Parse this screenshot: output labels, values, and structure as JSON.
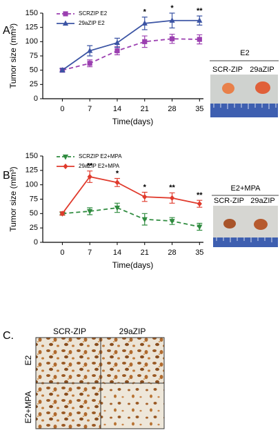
{
  "panel_labels": [
    "A.",
    "B.",
    "C."
  ],
  "chart_data": [
    {
      "type": "line",
      "x_label": "Time(days)",
      "y_label": "Tumor size (mm³)",
      "x": [
        0,
        7,
        14,
        21,
        28,
        35
      ],
      "xlim": [
        -5,
        36
      ],
      "xticks": [
        0,
        7,
        14,
        21,
        28,
        35
      ],
      "ylim": [
        0,
        150
      ],
      "yticks": [
        0,
        25,
        50,
        75,
        100,
        125,
        150
      ],
      "legend": "upper left",
      "series": [
        {
          "name": "SCRZIP E2",
          "color": "#9b3fb0",
          "linestyle": "dashed",
          "marker": "square",
          "values": [
            50,
            62,
            84,
            100,
            105,
            104
          ],
          "errors": [
            3,
            6,
            7,
            10,
            8,
            8
          ]
        },
        {
          "name": "29aZIP E2",
          "color": "#3b54a4",
          "linestyle": "solid",
          "marker": "triangle-up",
          "values": [
            50,
            84,
            98,
            132,
            137,
            137
          ],
          "errors": [
            3,
            9,
            8,
            11,
            13,
            8
          ]
        }
      ],
      "annotations": [
        {
          "x": 21,
          "text": "*"
        },
        {
          "x": 28,
          "text": "*"
        },
        {
          "x": 35,
          "text": "**"
        }
      ]
    },
    {
      "type": "line",
      "x_label": "Time(days)",
      "y_label": "Tumor size (mm³)",
      "x": [
        0,
        7,
        14,
        21,
        28,
        35
      ],
      "xlim": [
        -5,
        36
      ],
      "xticks": [
        0,
        7,
        14,
        21,
        28,
        35
      ],
      "ylim": [
        0,
        150
      ],
      "yticks": [
        0,
        25,
        50,
        75,
        100,
        125,
        150
      ],
      "legend": "upper left",
      "series": [
        {
          "name": "SCRZIP E2+MPA",
          "color": "#2e8b3e",
          "linestyle": "dashed",
          "marker": "triangle-down",
          "values": [
            50,
            54,
            60,
            40,
            37,
            27
          ],
          "errors": [
            2,
            6,
            8,
            10,
            6,
            6
          ]
        },
        {
          "name": "29aZIP E2+MPA",
          "color": "#e03a2c",
          "linestyle": "solid",
          "marker": "diamond",
          "values": [
            50,
            114,
            104,
            79,
            77,
            67
          ],
          "errors": [
            3,
            10,
            7,
            8,
            9,
            6
          ]
        }
      ],
      "annotations": [
        {
          "x": 7,
          "text": "**"
        },
        {
          "x": 14,
          "text": "*"
        },
        {
          "x": 21,
          "text": "*"
        },
        {
          "x": 28,
          "text": "**"
        },
        {
          "x": 35,
          "text": "**"
        }
      ]
    }
  ],
  "photos": [
    {
      "title": "E2",
      "columns": [
        "SCR-ZIP",
        "29aZIP"
      ]
    },
    {
      "title": "E2+MPA",
      "columns": [
        "SCR-ZIP",
        "29aZIP"
      ]
    }
  ],
  "staining": {
    "columns": [
      "SCR-ZIP",
      "29aZIP"
    ],
    "rows": [
      "E2",
      "E2+MPA"
    ]
  }
}
